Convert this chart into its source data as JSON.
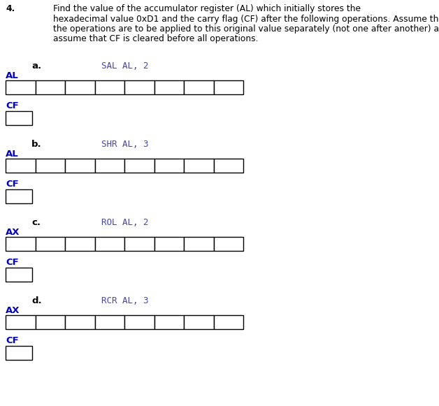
{
  "title_number": "4.",
  "title_line1": "Find the value of the accumulator register (AL) which initially stores the",
  "title_line2": "hexadecimal value 0xD1 and the carry flag (CF) after the following operations. Assume that",
  "title_line3": "the operations are to be applied to this original value separately (not one after another) and",
  "title_line4": "assume that CF is cleared before all operations.",
  "background_color": "#ffffff",
  "text_color": "#000000",
  "label_color": "#0000cc",
  "op_color": "#4444aa",
  "sections": [
    {
      "letter": "a.",
      "operation": "SAL AL, 2",
      "reg_label": "AL"
    },
    {
      "letter": "b.",
      "operation": "SHR AL, 3",
      "reg_label": "AL"
    },
    {
      "letter": "c.",
      "operation": "ROL AL, 2",
      "reg_label": "AX"
    },
    {
      "letter": "d.",
      "operation": "RCR AL, 3",
      "reg_label": "AX"
    }
  ],
  "num_cells": 8,
  "title_fontsize": 8.8,
  "label_fontsize": 9.5,
  "op_fontsize": 9.0,
  "cf_label_fontsize": 9.5,
  "fig_width": 6.28,
  "fig_height": 5.81,
  "dpi": 100
}
